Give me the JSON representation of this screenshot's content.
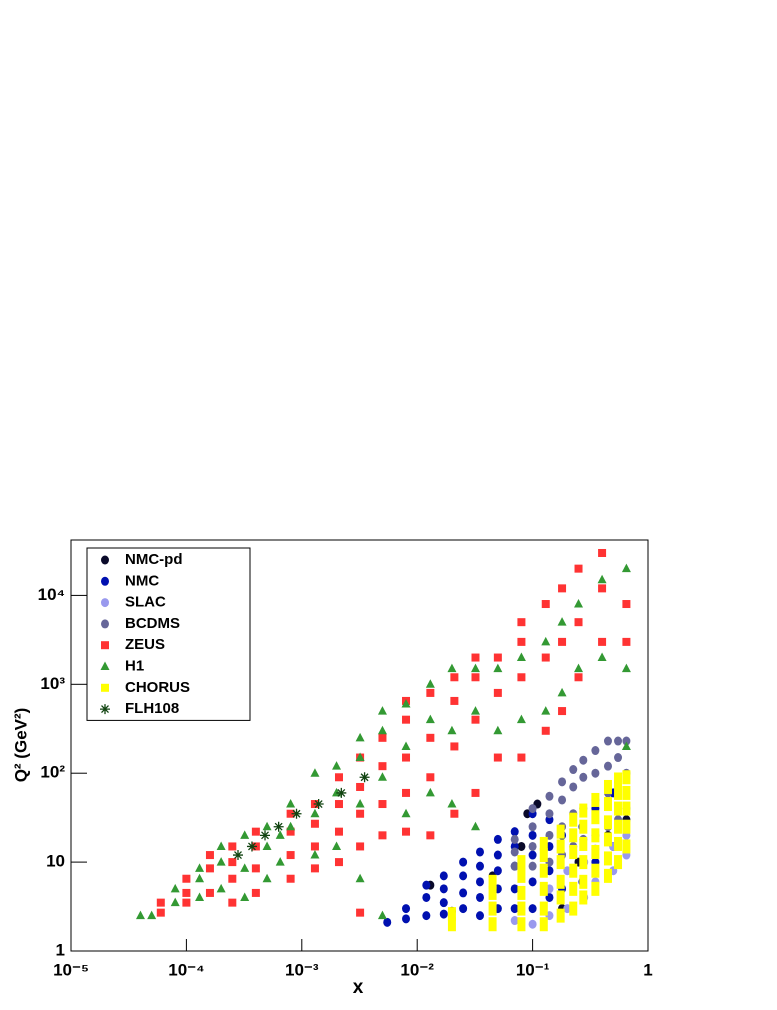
{
  "chart_data": {
    "type": "scatter",
    "x_label": "x",
    "y_label": "Q² (GeV²)",
    "xlog": true,
    "ylog": true,
    "xlim": [
      1e-05,
      1
    ],
    "ylim": [
      1,
      42000
    ],
    "xticks": [
      {
        "value": 1e-05,
        "label": "10⁻⁵"
      },
      {
        "value": 0.0001,
        "label": "10⁻⁴"
      },
      {
        "value": 0.001,
        "label": "10⁻³"
      },
      {
        "value": 0.01,
        "label": "10⁻²"
      },
      {
        "value": 0.1,
        "label": "10⁻¹"
      },
      1
    ],
    "yticks": [
      1,
      10,
      {
        "value": 100,
        "label": "10²"
      },
      {
        "value": 1000,
        "label": "10³"
      },
      {
        "value": 10000,
        "label": "10⁴"
      }
    ],
    "legend": "top-left",
    "series": [
      {
        "name": "NMC-pd",
        "color": "#0a0a2a",
        "marker": "circle",
        "x": [
          0.013,
          0.02,
          0.045,
          0.08,
          0.09,
          0.11,
          0.18,
          0.25,
          0.45,
          0.65
        ],
        "values": [
          5.5,
          2.8,
          7,
          15,
          35,
          45,
          3,
          10,
          20,
          30
        ]
      },
      {
        "name": "NMC",
        "color": "#0010b0",
        "marker": "circle",
        "x": [
          0.0055,
          0.008,
          0.008,
          0.012,
          0.012,
          0.012,
          0.017,
          0.017,
          0.017,
          0.017,
          0.025,
          0.025,
          0.025,
          0.025,
          0.035,
          0.035,
          0.035,
          0.035,
          0.035,
          0.05,
          0.05,
          0.05,
          0.05,
          0.05,
          0.07,
          0.07,
          0.07,
          0.07,
          0.07,
          0.1,
          0.1,
          0.1,
          0.1,
          0.1,
          0.14,
          0.14,
          0.14,
          0.14,
          0.18,
          0.18,
          0.27,
          0.27,
          0.35,
          0.35,
          0.5,
          0.5
        ],
        "values": [
          2.1,
          2.3,
          3,
          2.5,
          4,
          5.5,
          2.6,
          3.5,
          5,
          7,
          3,
          4.5,
          7,
          10,
          2.5,
          4,
          6,
          9,
          13,
          3,
          5,
          8,
          12,
          18,
          3,
          5,
          9,
          15,
          22,
          3,
          6,
          12,
          20,
          35,
          4,
          8,
          15,
          30,
          5,
          20,
          6,
          25,
          10,
          40,
          15,
          60
        ]
      },
      {
        "name": "SLAC",
        "color": "#9999ee",
        "marker": "circle",
        "x": [
          0.07,
          0.1,
          0.14,
          0.14,
          0.2,
          0.2,
          0.28,
          0.28,
          0.35,
          0.35,
          0.5,
          0.5,
          0.65,
          0.65
        ],
        "values": [
          2.2,
          2,
          2.5,
          5,
          3,
          8,
          4,
          10,
          6,
          14,
          8,
          15,
          12,
          20
        ]
      },
      {
        "name": "BCDMS",
        "color": "#666699",
        "marker": "circle",
        "x": [
          0.07,
          0.07,
          0.07,
          0.1,
          0.1,
          0.1,
          0.1,
          0.14,
          0.14,
          0.14,
          0.14,
          0.18,
          0.18,
          0.18,
          0.18,
          0.225,
          0.225,
          0.225,
          0.225,
          0.275,
          0.275,
          0.275,
          0.275,
          0.35,
          0.35,
          0.35,
          0.35,
          0.45,
          0.45,
          0.45,
          0.45,
          0.55,
          0.55,
          0.55,
          0.55,
          0.65,
          0.65,
          0.65
        ],
        "values": [
          9,
          13,
          18,
          9,
          15,
          25,
          40,
          10,
          20,
          35,
          55,
          12,
          25,
          50,
          80,
          15,
          35,
          70,
          110,
          18,
          40,
          90,
          140,
          20,
          50,
          100,
          180,
          25,
          60,
          120,
          230,
          30,
          80,
          150,
          230,
          40,
          100,
          230
        ]
      },
      {
        "name": "ZEUS",
        "color": "#ff3333",
        "marker": "square",
        "x": [
          6e-05,
          6e-05,
          0.0001,
          0.0001,
          0.0001,
          0.00016,
          0.00016,
          0.00016,
          0.00025,
          0.00025,
          0.00025,
          0.00025,
          0.0004,
          0.0004,
          0.0004,
          0.0004,
          0.0008,
          0.0008,
          0.0008,
          0.0008,
          0.0013,
          0.0013,
          0.0013,
          0.0013,
          0.0021,
          0.0021,
          0.0021,
          0.0021,
          0.0032,
          0.0032,
          0.0032,
          0.0032,
          0.0032,
          0.005,
          0.005,
          0.005,
          0.005,
          0.008,
          0.008,
          0.008,
          0.008,
          0.008,
          0.013,
          0.013,
          0.013,
          0.013,
          0.021,
          0.021,
          0.021,
          0.021,
          0.032,
          0.032,
          0.032,
          0.032,
          0.05,
          0.05,
          0.05,
          0.08,
          0.08,
          0.08,
          0.08,
          0.13,
          0.13,
          0.13,
          0.18,
          0.18,
          0.18,
          0.25,
          0.25,
          0.25,
          0.4,
          0.4,
          0.4,
          0.65,
          0.65
        ],
        "values": [
          2.7,
          3.5,
          3.5,
          4.5,
          6.5,
          4.5,
          8.5,
          12,
          3.5,
          6.5,
          10,
          15,
          4.5,
          8.5,
          15,
          22,
          6.5,
          12,
          22,
          35,
          8.5,
          15,
          27,
          45,
          10,
          22,
          45,
          90,
          2.7,
          15,
          35,
          70,
          150,
          20,
          45,
          120,
          250,
          22,
          60,
          150,
          400,
          650,
          20,
          90,
          250,
          800,
          35,
          200,
          650,
          1200,
          60,
          400,
          1200,
          2000,
          150,
          800,
          2000,
          150,
          1200,
          3000,
          5000,
          300,
          2000,
          8000,
          500,
          3000,
          12000,
          1200,
          5000,
          20000,
          3000,
          12000,
          30000,
          3000,
          8000
        ]
      },
      {
        "name": "H1",
        "color": "#339933",
        "marker": "triangle",
        "x": [
          4e-05,
          5e-05,
          8e-05,
          8e-05,
          0.00013,
          0.00013,
          0.00013,
          0.0002,
          0.0002,
          0.0002,
          0.00032,
          0.00032,
          0.00032,
          0.0005,
          0.0005,
          0.0005,
          0.00065,
          0.00065,
          0.0008,
          0.0008,
          0.0013,
          0.0013,
          0.0013,
          0.002,
          0.002,
          0.002,
          0.0032,
          0.0032,
          0.0032,
          0.0032,
          0.005,
          0.005,
          0.005,
          0.005,
          0.008,
          0.008,
          0.008,
          0.013,
          0.013,
          0.013,
          0.02,
          0.02,
          0.02,
          0.032,
          0.032,
          0.032,
          0.05,
          0.05,
          0.08,
          0.08,
          0.13,
          0.13,
          0.18,
          0.18,
          0.25,
          0.25,
          0.4,
          0.4,
          0.65,
          0.65,
          0.65
        ],
        "values": [
          2.5,
          2.5,
          3.5,
          5,
          4,
          6.5,
          8.5,
          5,
          10,
          15,
          4,
          8.5,
          20,
          6.5,
          15,
          25,
          10,
          20,
          25,
          45,
          12,
          35,
          100,
          15,
          60,
          120,
          6.5,
          45,
          150,
          250,
          2.5,
          90,
          300,
          500,
          35,
          200,
          600,
          60,
          400,
          1000,
          45,
          300,
          1500,
          25,
          500,
          1500,
          300,
          1500,
          400,
          2000,
          500,
          3000,
          800,
          5000,
          1500,
          8000,
          2000,
          15000,
          200,
          1500,
          20000
        ]
      },
      {
        "name": "CHORUS",
        "color": "#ffff00",
        "marker": "rect",
        "x": [
          0.02,
          0.02,
          0.045,
          0.045,
          0.045,
          0.045,
          0.08,
          0.08,
          0.08,
          0.08,
          0.08,
          0.125,
          0.125,
          0.125,
          0.125,
          0.125,
          0.125,
          0.175,
          0.175,
          0.175,
          0.175,
          0.175,
          0.175,
          0.225,
          0.225,
          0.225,
          0.225,
          0.225,
          0.225,
          0.275,
          0.275,
          0.275,
          0.275,
          0.275,
          0.275,
          0.35,
          0.35,
          0.35,
          0.35,
          0.35,
          0.35,
          0.45,
          0.45,
          0.45,
          0.45,
          0.45,
          0.45,
          0.55,
          0.55,
          0.55,
          0.55,
          0.55,
          0.55,
          0.65,
          0.65,
          0.65,
          0.65,
          0.65
        ],
        "values": [
          2,
          2.6,
          2,
          3,
          4.5,
          6,
          2,
          3,
          4.5,
          7,
          10,
          2,
          3,
          5,
          8,
          12,
          16,
          2.5,
          4,
          6,
          10,
          15,
          22,
          3,
          5,
          8,
          13,
          20,
          30,
          4,
          6,
          10,
          16,
          25,
          38,
          5,
          8,
          13,
          20,
          32,
          50,
          7,
          11,
          18,
          28,
          45,
          70,
          10,
          16,
          25,
          40,
          60,
          85,
          15,
          25,
          40,
          60,
          90
        ]
      },
      {
        "name": "FLH108",
        "color": "#114411",
        "marker": "star",
        "x": [
          0.00028,
          0.00037,
          0.00048,
          0.00063,
          0.0009,
          0.0014,
          0.0022,
          0.0035
        ],
        "values": [
          12,
          15,
          20,
          25,
          35,
          45,
          60,
          90
        ]
      }
    ]
  }
}
